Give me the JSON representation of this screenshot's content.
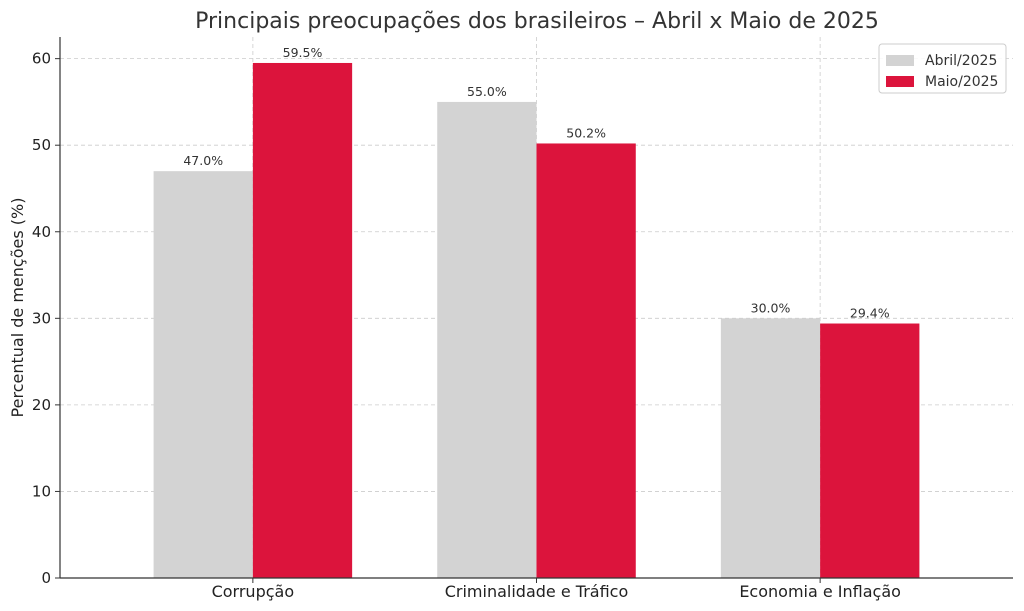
{
  "chart_data": {
    "type": "bar",
    "title": "Principais preocupações dos brasileiros – Abril x Maio de 2025",
    "xlabel": "",
    "ylabel": "Percentual de menções (%)",
    "categories": [
      "Corrupção",
      "Criminalidade e Tráfico",
      "Economia e Inflação"
    ],
    "series": [
      {
        "name": "Abril/2025",
        "color": "#d3d3d3",
        "values": [
          47.0,
          55.0,
          30.0
        ],
        "labels": [
          "47.0%",
          "55.0%",
          "30.0%"
        ]
      },
      {
        "name": "Maio/2025",
        "color": "#dc143c",
        "values": [
          59.5,
          50.2,
          29.4
        ],
        "labels": [
          "59.5%",
          "50.2%",
          "29.4%"
        ]
      }
    ],
    "ylim": [
      0,
      62.5
    ],
    "yticks": [
      0,
      10,
      20,
      30,
      40,
      50,
      60
    ],
    "grid": true,
    "legend_position": "top-right"
  }
}
